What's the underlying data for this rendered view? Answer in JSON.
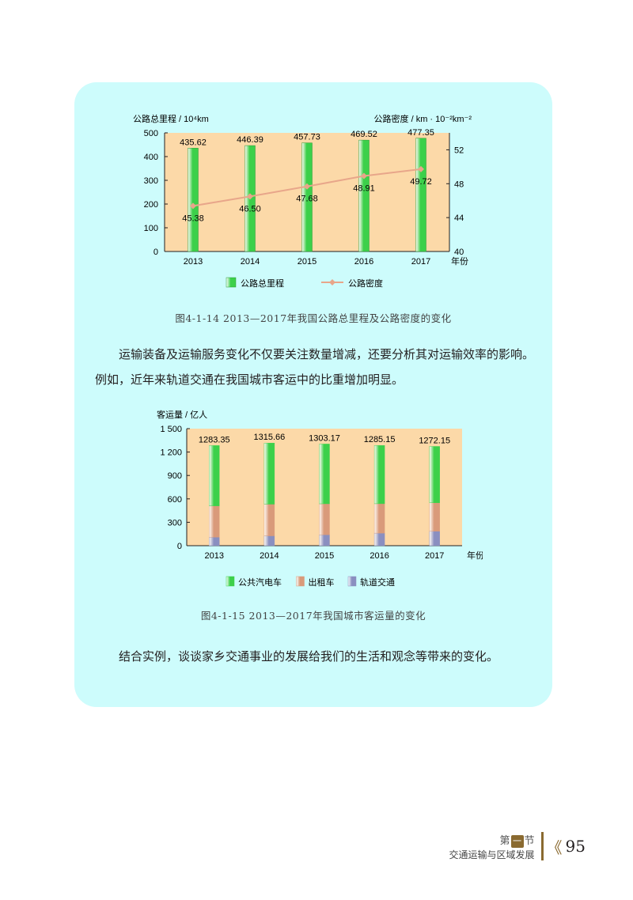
{
  "chart_data": [
    {
      "type": "bar",
      "title": "",
      "ylabel": "公路总里程 / 10⁴km",
      "ylabel_right": "公路密度 / km · 10⁻²km⁻²",
      "xlabel": "年份",
      "categories": [
        "2013",
        "2014",
        "2015",
        "2016",
        "2017"
      ],
      "ylim": [
        0,
        500
      ],
      "ylim_right": [
        40,
        54
      ],
      "yticks": [
        0,
        100,
        200,
        300,
        400,
        500
      ],
      "yticks_right": [
        40,
        44,
        48,
        52
      ],
      "series": [
        {
          "name": "公路总里程",
          "kind": "bar",
          "axis": "left",
          "values": [
            435.62,
            446.39,
            457.73,
            469.52,
            477.35
          ],
          "labels": [
            "435.62",
            "446.39",
            "457.73",
            "469.52",
            "477.35"
          ],
          "color": "#3cd04a"
        },
        {
          "name": "公路密度",
          "kind": "line",
          "axis": "right",
          "values": [
            45.38,
            46.5,
            47.68,
            48.91,
            49.72
          ],
          "labels": [
            "45.38",
            "46.50",
            "47.68",
            "48.91",
            "49.72"
          ],
          "color": "#e8a68a"
        }
      ],
      "grid": false,
      "legend": "bottom",
      "caption": "图4-1-14  2013—2017年我国公路总里程及公路密度的变化"
    },
    {
      "type": "bar",
      "stacked": true,
      "title": "",
      "ylabel": "客运量 / 亿人",
      "xlabel": "年份",
      "categories": [
        "2013",
        "2014",
        "2015",
        "2016",
        "2017"
      ],
      "ylim": [
        0,
        1500
      ],
      "yticks": [
        0,
        300,
        600,
        900,
        1200,
        1500
      ],
      "ytick_labels": [
        "0",
        "300",
        "600",
        "900",
        "1 200",
        "1 500"
      ],
      "totals": [
        "1283.35",
        "1315.66",
        "1303.17",
        "1285.15",
        "1272.15"
      ],
      "series": [
        {
          "name": "轨道交通",
          "values": [
            109,
            126,
            140,
            161,
            185
          ],
          "color": "#8a8fc0"
        },
        {
          "name": "出租车",
          "values": [
            401,
            406,
            397,
            377,
            365
          ],
          "color": "#d99a7a"
        },
        {
          "name": "公共汽电车",
          "values": [
            773.35,
            783.66,
            766.17,
            747.15,
            722.15
          ],
          "color": "#3cd04a"
        }
      ],
      "legend_order": [
        "公共汽电车",
        "出租车",
        "轨道交通"
      ],
      "grid": false,
      "legend": "bottom",
      "caption": "图4-1-15  2013—2017年我国城市客运量的变化"
    }
  ],
  "text": {
    "paragraph1": "运输装备及运输服务变化不仅要关注数量增减，还要分析其对运输效率的影响。例如，近年来轨道交通在我国城市客运中的比重增加明显。",
    "paragraph2": "结合实例，谈谈家乡交通事业的发展给我们的生活和观念等带来的变化。"
  },
  "footer": {
    "section_prefix": "第",
    "section_num": "一",
    "section_suffix": "节",
    "subtitle": "交通运输与区域发展",
    "arrows": "《",
    "page": "95"
  },
  "colors": {
    "panel_bg": "#cdfcfc",
    "plot_bg": "#fcd9a8",
    "bar_green": "#3cd04a",
    "line_orange": "#e8a68a",
    "taxi": "#d99a7a",
    "rail": "#8a8fc0"
  }
}
